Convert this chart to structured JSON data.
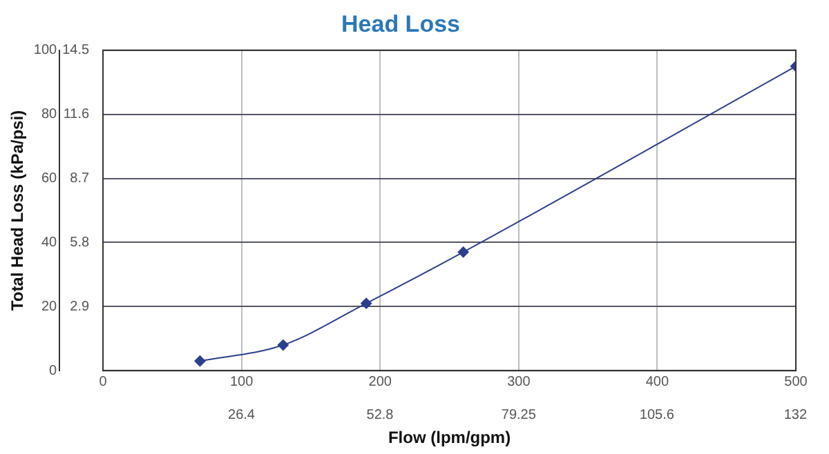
{
  "chart_data": {
    "type": "line",
    "title": "Head Loss",
    "xlabel": "Flow (lpm/gpm)",
    "ylabel": "Total Head Loss (kPa/psi)",
    "x": [
      70,
      130,
      190,
      260,
      500
    ],
    "series": [
      {
        "color": "#2b3f8c",
        "values": [
          3,
          8,
          21,
          37,
          95
        ]
      }
    ],
    "xlim": [
      0,
      500
    ],
    "xticks": [
      0,
      100,
      200,
      300,
      400,
      500
    ],
    "x2lim": [
      0,
      132.09
    ],
    "x2ticks": [
      26.4,
      52.8,
      79.25,
      105.6,
      132
    ],
    "ylim": [
      0,
      100
    ],
    "yticks": [
      0,
      20,
      40,
      60,
      80,
      100
    ],
    "y2lim": [
      0,
      14.5
    ],
    "y2ticks": [
      2.9,
      5.8,
      8.7,
      11.6,
      14.5
    ],
    "grid": true,
    "legend": false,
    "marker": "diamond",
    "line_style": "solid"
  }
}
